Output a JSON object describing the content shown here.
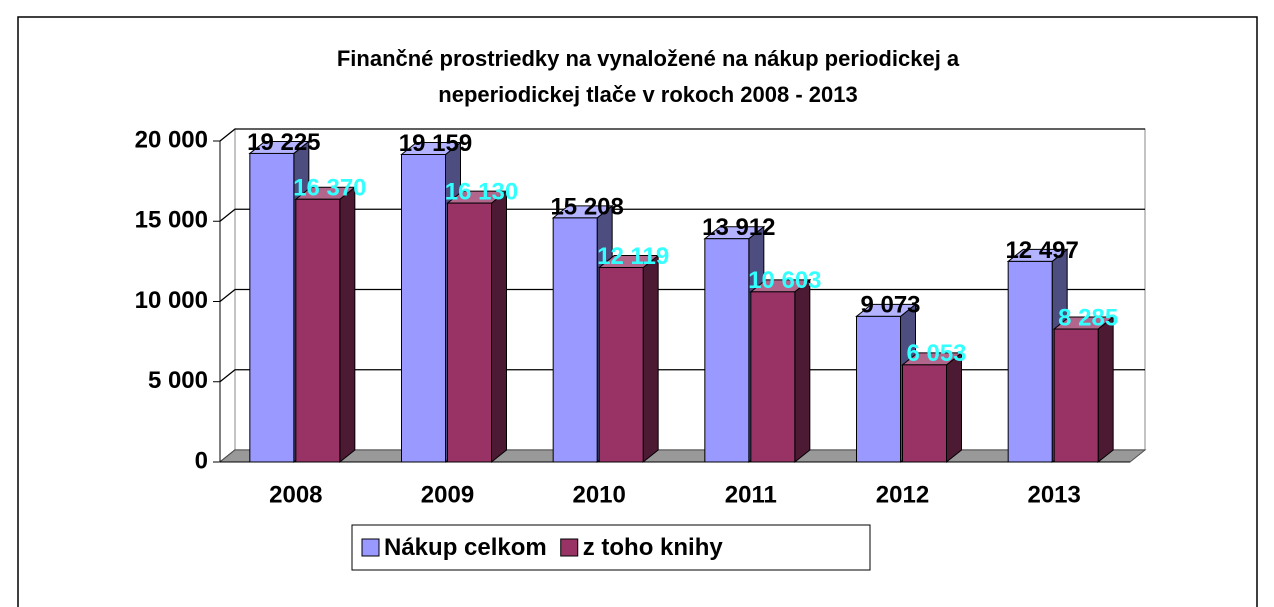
{
  "chart_data": {
    "type": "bar3d",
    "title": [
      "Finančné prostriedky na vynaložené na nákup periodickej a",
      "neperiodickej tlače v rokoch 2008 - 2013"
    ],
    "categories": [
      "2008",
      "2009",
      "2010",
      "2011",
      "2012",
      "2013"
    ],
    "series": [
      {
        "name": "Nákup celkom",
        "color": "#9999ff",
        "values": [
          19225,
          19159,
          15208,
          13912,
          9073,
          12497
        ],
        "value_labels": [
          "19 225",
          "19 159",
          "15 208",
          "13 912",
          "9 073",
          "12 497"
        ]
      },
      {
        "name": "z toho knihy",
        "color": "#993366",
        "values": [
          16370,
          16130,
          12119,
          10603,
          6053,
          8285
        ],
        "value_labels": [
          "16 370",
          "16 130",
          "12 119",
          "10 603",
          "6 053",
          "8 285"
        ]
      }
    ],
    "ylim": [
      0,
      20000
    ],
    "yticks": [
      0,
      {
        "value": 5000,
        "label": "5 000"
      },
      {
        "value": 10000,
        "label": "10 000"
      },
      {
        "value": 15000,
        "label": "15 000"
      },
      {
        "value": 20000,
        "label": "20 000"
      }
    ],
    "grid": true,
    "legend": "bottom"
  }
}
